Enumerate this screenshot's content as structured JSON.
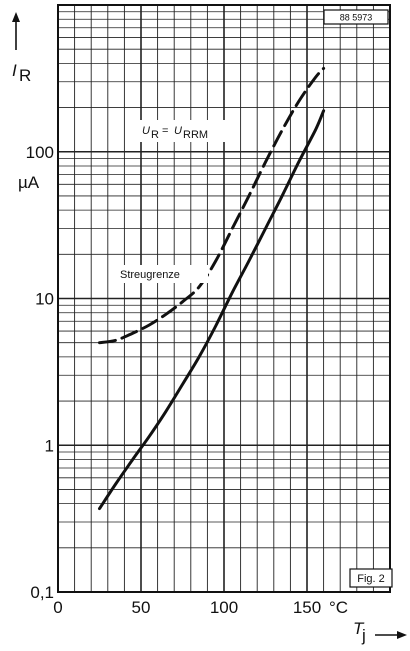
{
  "chart_data": {
    "type": "line",
    "figure_id": "88 5973",
    "figure_label": "Fig. 2",
    "ylabel": {
      "symbol": "I",
      "subscript": "R",
      "unit": "µA"
    },
    "xlabel": {
      "symbol": "T",
      "subscript": "j",
      "unit": "°C"
    },
    "x_scale": "linear",
    "y_scale": "log",
    "xlim": [
      0,
      200
    ],
    "ylim": [
      0.1,
      1000
    ],
    "x_ticks": [
      0,
      50,
      100,
      150
    ],
    "x_tick_labels": [
      "0",
      "50",
      "100",
      "150"
    ],
    "y_ticks": [
      0.1,
      1,
      10,
      100
    ],
    "y_tick_labels": [
      "0,1",
      "1",
      "10",
      "100"
    ],
    "grid": true,
    "condition_label": {
      "symbol_a": "U",
      "sub_a": "R",
      "symbol_b": "U",
      "sub_b": "RRM"
    },
    "series": [
      {
        "label": "Streugrenze",
        "style": "dashed",
        "points": [
          [
            25,
            5
          ],
          [
            35,
            5.2
          ],
          [
            45,
            5.8
          ],
          [
            55,
            6.6
          ],
          [
            65,
            7.8
          ],
          [
            75,
            9.5
          ],
          [
            85,
            12
          ],
          [
            95,
            18
          ],
          [
            105,
            30
          ],
          [
            115,
            50
          ],
          [
            125,
            85
          ],
          [
            135,
            140
          ],
          [
            145,
            220
          ],
          [
            155,
            320
          ],
          [
            160,
            370
          ]
        ]
      },
      {
        "style": "solid",
        "points": [
          [
            25,
            0.37
          ],
          [
            35,
            0.55
          ],
          [
            45,
            0.8
          ],
          [
            55,
            1.15
          ],
          [
            65,
            1.7
          ],
          [
            75,
            2.6
          ],
          [
            85,
            4
          ],
          [
            95,
            6.5
          ],
          [
            105,
            11
          ],
          [
            115,
            18
          ],
          [
            125,
            30
          ],
          [
            135,
            50
          ],
          [
            145,
            85
          ],
          [
            155,
            140
          ],
          [
            160,
            190
          ]
        ]
      }
    ]
  }
}
